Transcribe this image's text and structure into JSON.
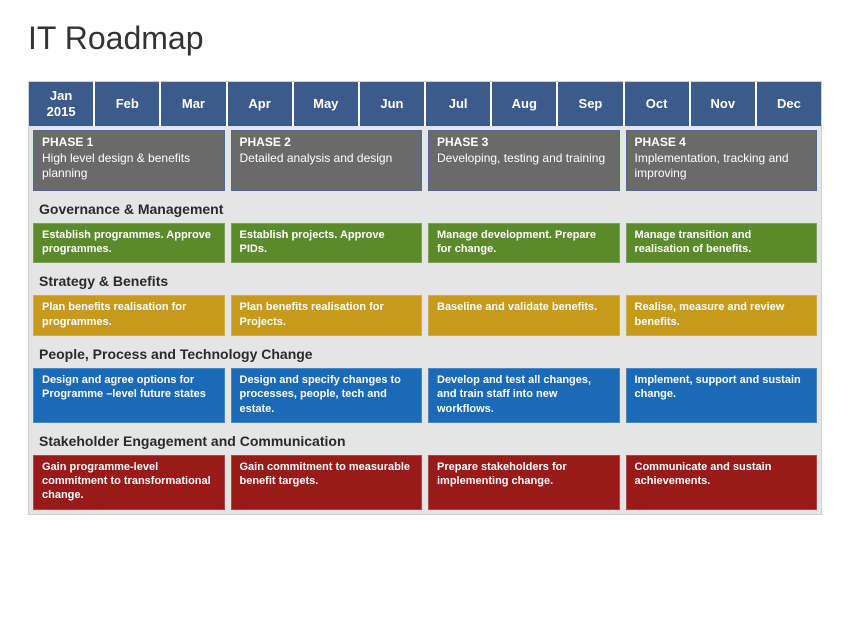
{
  "title": "IT Roadmap",
  "title_fontsize": 32,
  "title_color": "#333333",
  "background_color": "#ffffff",
  "container_border_color": "#d0d0d0",
  "months": {
    "cells": [
      {
        "label": "Jan",
        "year": "2015"
      },
      {
        "label": "Feb"
      },
      {
        "label": "Mar"
      },
      {
        "label": "Apr"
      },
      {
        "label": "May"
      },
      {
        "label": "Jun"
      },
      {
        "label": "Jul"
      },
      {
        "label": "Aug"
      },
      {
        "label": "Sep"
      },
      {
        "label": "Oct"
      },
      {
        "label": "Nov"
      },
      {
        "label": "Dec"
      }
    ],
    "bg_color": "#3b5b8c",
    "text_color": "#ffffff",
    "font_size": 13
  },
  "phases": {
    "bg_color": "#6a6a6a",
    "border_color": "#4a6a9a",
    "text_color": "#ffffff",
    "font_size": 12,
    "row_bg": "#e5e5e5",
    "cells": [
      {
        "title": "PHASE 1",
        "desc": "High level design & benefits planning",
        "span": 3
      },
      {
        "title": "PHASE 2",
        "desc": "Detailed analysis and design",
        "span": 3
      },
      {
        "title": "PHASE 3",
        "desc": "Developing, testing and training",
        "span": 3
      },
      {
        "title": "PHASE 4",
        "desc": "Implementation, tracking and improving",
        "span": 3
      }
    ]
  },
  "tracks": [
    {
      "name": "Governance & Management",
      "color": "#5a8a2a",
      "cells": [
        {
          "text": "Establish programmes. Approve programmes.",
          "span": 3
        },
        {
          "text": "Establish projects. Approve PIDs.",
          "span": 3
        },
        {
          "text": "Manage development. Prepare for change.",
          "span": 3
        },
        {
          "text": "Manage transition and realisation of benefits.",
          "span": 3
        }
      ]
    },
    {
      "name": "Strategy & Benefits",
      "color": "#c79a1a",
      "cells": [
        {
          "text": "Plan benefits realisation for programmes.",
          "span": 3
        },
        {
          "text": "Plan benefits realisation for Projects.",
          "span": 3
        },
        {
          "text": "Baseline and validate benefits.",
          "span": 3
        },
        {
          "text": "Realise, measure and review benefits.",
          "span": 3
        }
      ]
    },
    {
      "name": "People, Process and Technology Change",
      "color": "#1a6ab8",
      "cells": [
        {
          "text": "Design and agree options for Programme –level future states",
          "span": 3
        },
        {
          "text": "Design and specify changes to processes, people, tech and estate.",
          "span": 3
        },
        {
          "text": "Develop and test all changes, and train staff into new workflows.",
          "span": 3
        },
        {
          "text": "Implement, support and sustain change.",
          "span": 3
        }
      ]
    },
    {
      "name": "Stakeholder Engagement and Communication",
      "color": "#9a1a1a",
      "cells": [
        {
          "text": "Gain programme-level commitment to transformational change.",
          "span": 3
        },
        {
          "text": "Gain commitment to measurable benefit targets.",
          "span": 3
        },
        {
          "text": "Prepare stakeholders for implementing change.",
          "span": 3
        },
        {
          "text": "Communicate and sustain achievements.",
          "span": 3
        }
      ]
    }
  ],
  "track_header_bg": "#e5e5e5",
  "track_header_color": "#2a2a2a",
  "track_header_fontsize": 14,
  "track_cell_fontsize": 11
}
